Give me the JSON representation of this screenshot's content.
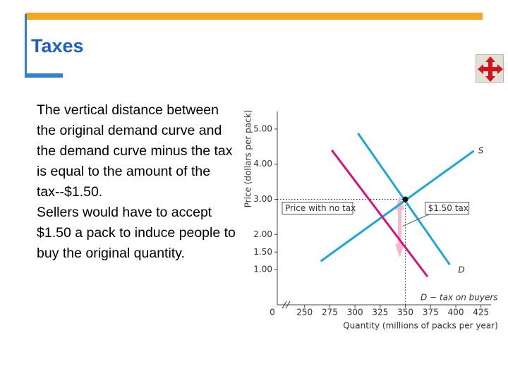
{
  "title": "Taxes",
  "paragraphs": [
    "The vertical distance between the original demand curve and the demand curve minus the tax is equal to the amount of the tax--$1.50.",
    "Sellers would have to accept $1.50 a pack to induce people to buy the original quantity."
  ],
  "chart_data": {
    "type": "line",
    "x_label": "Quantity (millions of packs per year)",
    "y_label": "Price (dollars per pack)",
    "x_origin_label": "0",
    "xlim": [
      225,
      435
    ],
    "ylim": [
      0,
      5.5
    ],
    "xticks": [
      250,
      275,
      300,
      325,
      350,
      375,
      400,
      425
    ],
    "yticks": [
      {
        "value": 1,
        "label": "1.00"
      },
      {
        "value": 1.5,
        "label": "1.50"
      },
      {
        "value": 2,
        "label": "2.00"
      },
      {
        "value": 3,
        "label": "3.00"
      },
      {
        "value": 4,
        "label": "4.00"
      },
      {
        "value": 5,
        "label": "5.00"
      }
    ],
    "series": [
      {
        "name": "S",
        "color": "#1ea7dc",
        "x": [
          266,
          418
        ],
        "values": [
          1.24,
          4.38
        ]
      },
      {
        "name": "D",
        "color": "#1ea7dc",
        "x": [
          303,
          394
        ],
        "values": [
          4.88,
          1.14
        ]
      },
      {
        "name": "D − tax on buyers",
        "color": "#d4157c",
        "x": [
          277,
          372
        ],
        "values": [
          4.4,
          0.8
        ]
      }
    ],
    "point": {
      "x": 350,
      "y": 3,
      "label": "Price with no tax"
    },
    "tax": {
      "value": 1.5,
      "label": "$1.50 tax",
      "color": "#f4b8cf"
    }
  }
}
